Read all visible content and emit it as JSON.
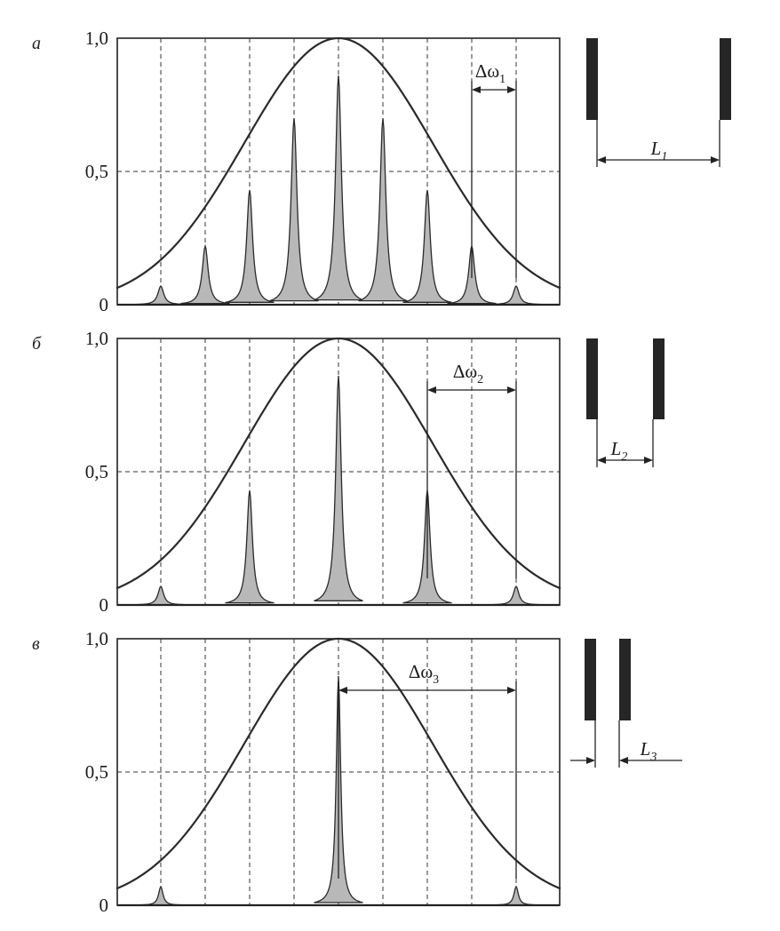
{
  "chart_data": [
    {
      "type": "area",
      "panel_label": "а",
      "y_tick_labels": [
        "0",
        "0,5",
        "1,0"
      ],
      "ylim": [
        0,
        1.0
      ],
      "y_gridlines": [
        0.5
      ],
      "xlim": [
        -5,
        5
      ],
      "x_gridlines": [
        -4,
        -3,
        -2,
        -1,
        0,
        1,
        2,
        3,
        4
      ],
      "grid": true,
      "series": [
        {
          "kind": "envelope",
          "x": [
            -5,
            -4,
            -3,
            -2,
            -1,
            0,
            1,
            2,
            3,
            4,
            5
          ],
          "y": [
            0.04,
            0.12,
            0.29,
            0.56,
            0.87,
            1.0,
            0.87,
            0.56,
            0.29,
            0.12,
            0.04
          ]
        },
        {
          "kind": "mode-peaks",
          "x": [
            -4,
            -3,
            -2,
            -1,
            0,
            1,
            2,
            3,
            4
          ],
          "y": [
            0.07,
            0.22,
            0.43,
            0.7,
            0.86,
            0.7,
            0.43,
            0.22,
            0.07
          ]
        }
      ],
      "spacing_label": {
        "symbol": "Δω",
        "subscript": "1",
        "from": 3,
        "to": 4
      },
      "resonator": {
        "label": "L",
        "subscript": "1"
      }
    },
    {
      "type": "area",
      "panel_label": "б",
      "y_tick_labels": [
        "0",
        "0,5",
        "1,0"
      ],
      "ylim": [
        0,
        1.0
      ],
      "y_gridlines": [
        0.5
      ],
      "xlim": [
        -5,
        5
      ],
      "x_gridlines": [
        -4,
        -3,
        -2,
        -1,
        0,
        1,
        2,
        3,
        4
      ],
      "grid": true,
      "series": [
        {
          "kind": "envelope",
          "x": [
            -5,
            -4,
            -3,
            -2,
            -1,
            0,
            1,
            2,
            3,
            4,
            5
          ],
          "y": [
            0.04,
            0.12,
            0.29,
            0.56,
            0.87,
            1.0,
            0.87,
            0.56,
            0.29,
            0.12,
            0.04
          ]
        },
        {
          "kind": "mode-peaks",
          "x": [
            -4,
            -2,
            0,
            2,
            4
          ],
          "y": [
            0.07,
            0.43,
            0.86,
            0.43,
            0.07
          ]
        }
      ],
      "spacing_label": {
        "symbol": "Δω",
        "subscript": "2",
        "from": 2,
        "to": 4
      },
      "resonator": {
        "label": "L",
        "subscript": "2"
      }
    },
    {
      "type": "area",
      "panel_label": "в",
      "y_tick_labels": [
        "0",
        "0,5",
        "1,0"
      ],
      "ylim": [
        0,
        1.0
      ],
      "y_gridlines": [
        0.5
      ],
      "xlim": [
        -5,
        5
      ],
      "x_gridlines": [
        -4,
        -3,
        -2,
        -1,
        0,
        1,
        2,
        3,
        4
      ],
      "grid": true,
      "series": [
        {
          "kind": "envelope",
          "x": [
            -5,
            -4,
            -3,
            -2,
            -1,
            0,
            1,
            2,
            3,
            4,
            5
          ],
          "y": [
            0.04,
            0.12,
            0.29,
            0.56,
            0.87,
            1.0,
            0.87,
            0.56,
            0.29,
            0.12,
            0.04
          ]
        },
        {
          "kind": "mode-peaks",
          "x": [
            -4,
            0,
            4
          ],
          "y": [
            0.07,
            0.86,
            0.07
          ]
        }
      ],
      "spacing_label": {
        "symbol": "Δω",
        "subscript": "3",
        "from": 0,
        "to": 4
      },
      "resonator": {
        "label": "L",
        "subscript": "3"
      }
    }
  ]
}
